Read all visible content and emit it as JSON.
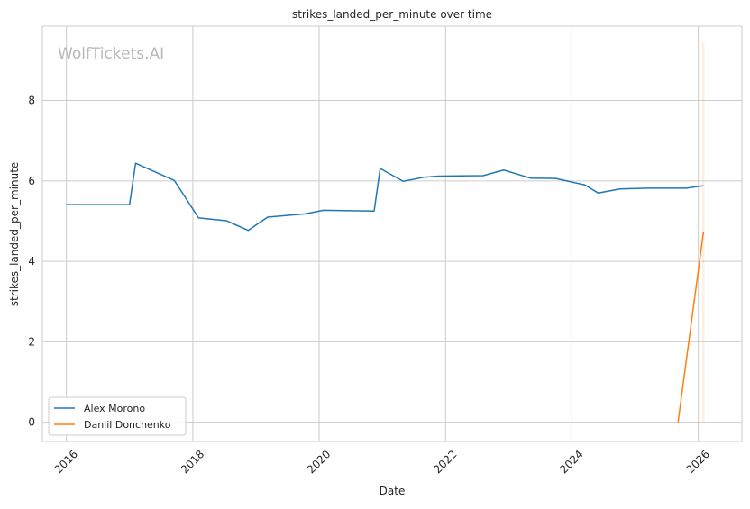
{
  "chart_data": {
    "type": "line",
    "title": "strikes_landed_per_minute over time",
    "xlabel": "Date",
    "ylabel": "strikes_landed_per_minute",
    "watermark": "WolfTickets.AI",
    "x_axis_kind": "date",
    "xlim": [
      "2015-08-15",
      "2026-09-10"
    ],
    "ylim": [
      -0.48,
      9.85
    ],
    "x_ticks": [
      "2016",
      "2018",
      "2020",
      "2022",
      "2024",
      "2026"
    ],
    "y_ticks": [
      0,
      2,
      4,
      6,
      8
    ],
    "grid": true,
    "legend_position": "lower-left",
    "series": [
      {
        "name": "Alex Morono",
        "color": "#1f77b4",
        "points": [
          {
            "x": "2016-01-01",
            "y": 5.41
          },
          {
            "x": "2016-12-31",
            "y": 5.41
          },
          {
            "x": "2017-02-04",
            "y": 6.44
          },
          {
            "x": "2017-09-16",
            "y": 6.01
          },
          {
            "x": "2018-02-03",
            "y": 5.08
          },
          {
            "x": "2018-07-14",
            "y": 5.01
          },
          {
            "x": "2018-11-17",
            "y": 4.77
          },
          {
            "x": "2019-03-09",
            "y": 5.1
          },
          {
            "x": "2019-10-12",
            "y": 5.18
          },
          {
            "x": "2020-01-25",
            "y": 5.27
          },
          {
            "x": "2020-11-14",
            "y": 5.25
          },
          {
            "x": "2020-12-19",
            "y": 6.31
          },
          {
            "x": "2021-05-01",
            "y": 5.99
          },
          {
            "x": "2021-08-28",
            "y": 6.09
          },
          {
            "x": "2021-11-20",
            "y": 6.12
          },
          {
            "x": "2022-08-06",
            "y": 6.13
          },
          {
            "x": "2022-12-03",
            "y": 6.27
          },
          {
            "x": "2023-05-06",
            "y": 6.07
          },
          {
            "x": "2023-09-30",
            "y": 6.06
          },
          {
            "x": "2024-03-16",
            "y": 5.9
          },
          {
            "x": "2024-06-01",
            "y": 5.7
          },
          {
            "x": "2024-10-05",
            "y": 5.8
          },
          {
            "x": "2025-03-15",
            "y": 5.82
          },
          {
            "x": "2025-10-25",
            "y": 5.82
          },
          {
            "x": "2026-01-31",
            "y": 5.88
          }
        ]
      },
      {
        "name": "Daniil Donchenko",
        "color": "#ff7f0e",
        "points": [
          {
            "x": "2025-09-06",
            "y": 0
          },
          {
            "x": "2026-01-31",
            "y": 4.73
          }
        ]
      }
    ],
    "annotations": [
      {
        "type": "vertical-band",
        "x_from": "2026-01-24",
        "x_to": "2026-02-06",
        "y_from": 0,
        "y_to": 9.45,
        "color": "#ff7f0e"
      }
    ]
  }
}
